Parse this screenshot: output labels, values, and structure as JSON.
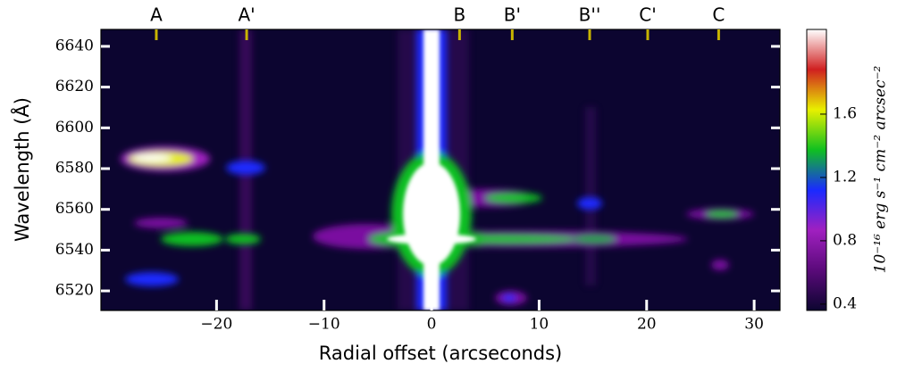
{
  "chart_data": {
    "type": "image",
    "xlabel": "Radial offset (arcseconds)",
    "ylabel": "Wavelength (Å)",
    "xlim": [
      -30.75,
      32.4
    ],
    "ylim": [
      6510.4,
      6648.3
    ],
    "xticks": [
      {
        "value": -20,
        "label": "−20"
      },
      {
        "value": -10,
        "label": "−10"
      },
      0,
      10,
      20,
      30
    ],
    "yticks": [
      6520,
      6540,
      6560,
      6580,
      6600,
      6620,
      6640
    ],
    "markers": {
      "labels": [
        "A",
        "A'",
        "B",
        "B'",
        "B''",
        "C'",
        "C"
      ],
      "x": [
        -25.6,
        -17.2,
        2.6,
        7.5,
        14.7,
        20.1,
        26.7
      ],
      "color": "#c8b400"
    },
    "colorbar": {
      "label": "10⁻¹⁶ erg s⁻¹ cm⁻² arcsec⁻²",
      "lim": [
        0.36,
        2.135
      ],
      "ticks": [
        0.4,
        0.8,
        1.2,
        1.6
      ],
      "colormap": [
        "#0c0530",
        "#5a0a7a",
        "#a020c0",
        "#1a2aff",
        "#10c020",
        "#e8f000",
        "#d02020",
        "#ffffff"
      ]
    }
  }
}
